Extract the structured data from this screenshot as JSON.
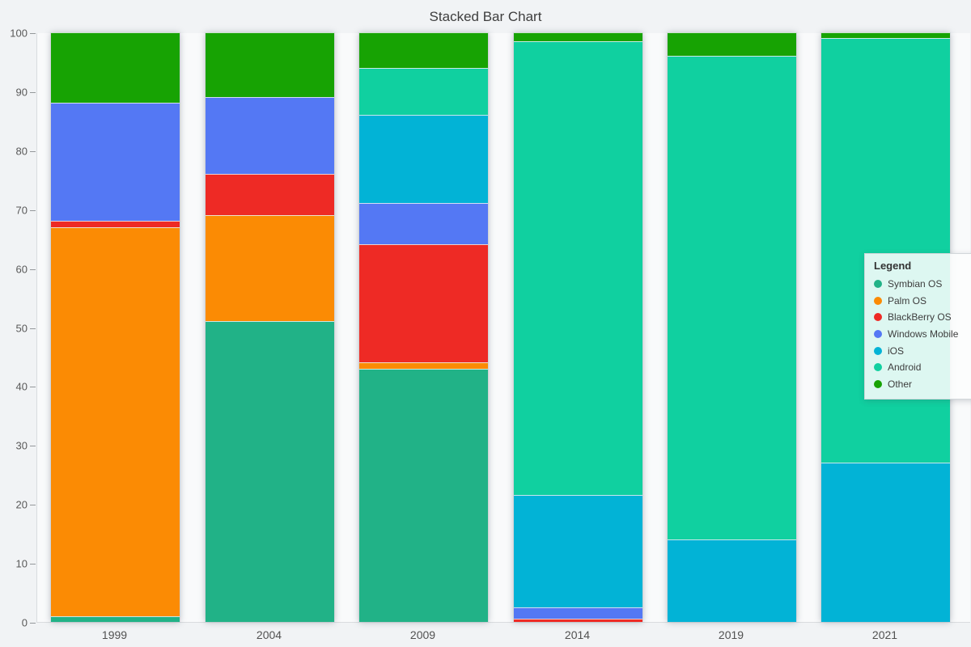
{
  "title": "Stacked Bar Chart",
  "legend": {
    "title": "Legend",
    "position": "right-overlay"
  },
  "chart_data": {
    "type": "bar",
    "stacked": true,
    "title": "Stacked Bar Chart",
    "xlabel": "",
    "ylabel": "",
    "ylim": [
      0,
      100
    ],
    "yticks": [
      0,
      10,
      20,
      30,
      40,
      50,
      60,
      70,
      80,
      90,
      100
    ],
    "grid": false,
    "legend_position": "right",
    "categories": [
      "1999",
      "2004",
      "2009",
      "2014",
      "2019",
      "2021"
    ],
    "series": [
      {
        "name": "Symbian OS",
        "color": "#21b287",
        "values": [
          1,
          51,
          43,
          0,
          0,
          0
        ]
      },
      {
        "name": "Palm OS",
        "color": "#fb8b04",
        "values": [
          66,
          18,
          1,
          0,
          0,
          0
        ]
      },
      {
        "name": "BlackBerry OS",
        "color": "#ee2a25",
        "values": [
          1,
          7,
          20,
          0.5,
          0,
          0
        ]
      },
      {
        "name": "Windows Mobile",
        "color": "#5478f4",
        "values": [
          20,
          13,
          7,
          2,
          0,
          0
        ]
      },
      {
        "name": "iOS",
        "color": "#02b3d6",
        "values": [
          0,
          0,
          15,
          19,
          14,
          27
        ]
      },
      {
        "name": "Android",
        "color": "#10d0a0",
        "values": [
          0,
          0,
          8,
          77,
          82,
          72
        ]
      },
      {
        "name": "Other",
        "color": "#17a303",
        "values": [
          12,
          11,
          6,
          1.5,
          4,
          1
        ]
      }
    ],
    "axis_colors": {
      "line": "#d9dcdf",
      "tick": "#94989b",
      "label": "#595959"
    }
  }
}
